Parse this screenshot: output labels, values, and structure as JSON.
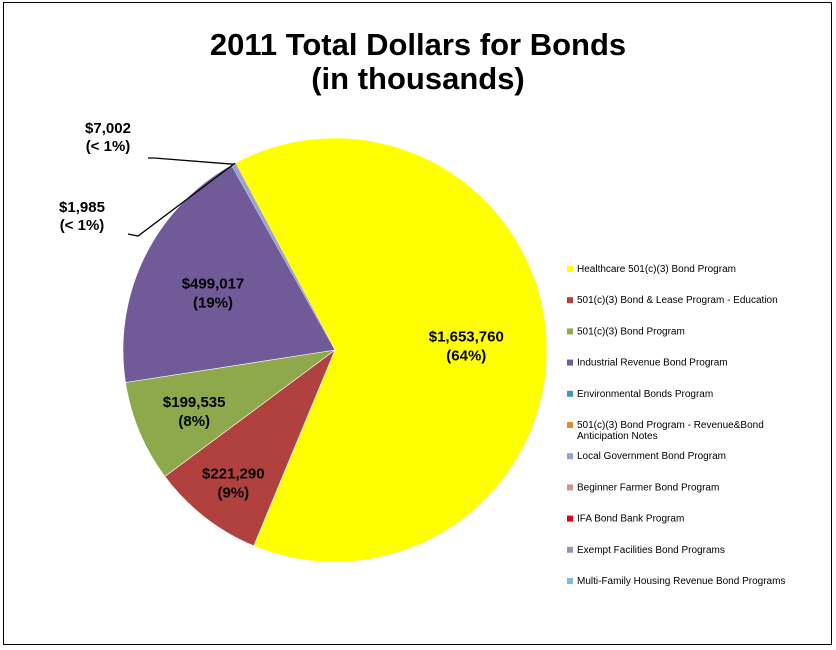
{
  "chart_data": {
    "type": "pie",
    "title": [
      "2011 Total Dollars for Bonds",
      "(in thousands)"
    ],
    "legend_position": "right",
    "slices": [
      {
        "name": "Healthcare 501(c)(3) Bond Program",
        "value": 1653760,
        "label": "$1,653,760",
        "pct": "(64%)",
        "color": "#FFFF00"
      },
      {
        "name": "501(c)(3) Bond & Lease Program - Education",
        "value": 221290,
        "label": "$221,290",
        "pct": "(9%)",
        "color": "#B0413E"
      },
      {
        "name": "501(c)(3) Bond Program",
        "value": 199535,
        "label": "$199,535",
        "pct": "(8%)",
        "color": "#8DA94B"
      },
      {
        "name": "Industrial Revenue Bond Program",
        "value": 499017,
        "label": "$499,017",
        "pct": "(19%)",
        "color": "#705A97"
      },
      {
        "name": "Environmental Bonds Program",
        "value": 0,
        "label": "",
        "pct": "",
        "color": "#3A9BB0"
      },
      {
        "name": "501(c)(3) Bond Program - Revenue&Bond Anticipation Notes",
        "value": 0,
        "label": "",
        "pct": "",
        "color": "#E58A3A"
      },
      {
        "name": "Local Government Bond Program",
        "value": 7002,
        "label": "$7,002",
        "pct": "(< 1%)",
        "color": "#8FA6D4"
      },
      {
        "name": "Beginner Farmer Bond Program",
        "value": 1985,
        "label": "$1,985",
        "pct": "(< 1%)",
        "color": "#D38F8E"
      },
      {
        "name": "IFA Bond Bank Program",
        "value": 0,
        "label": "",
        "pct": "",
        "color": "#E3000F"
      },
      {
        "name": "Exempt Facilities Bond Programs",
        "value": 0,
        "label": "",
        "pct": "",
        "color": "#9A93B8"
      },
      {
        "name": "Multi-Family Housing Revenue Bond Programs",
        "value": 0,
        "label": "",
        "pct": "",
        "color": "#7FBCD9"
      }
    ]
  }
}
